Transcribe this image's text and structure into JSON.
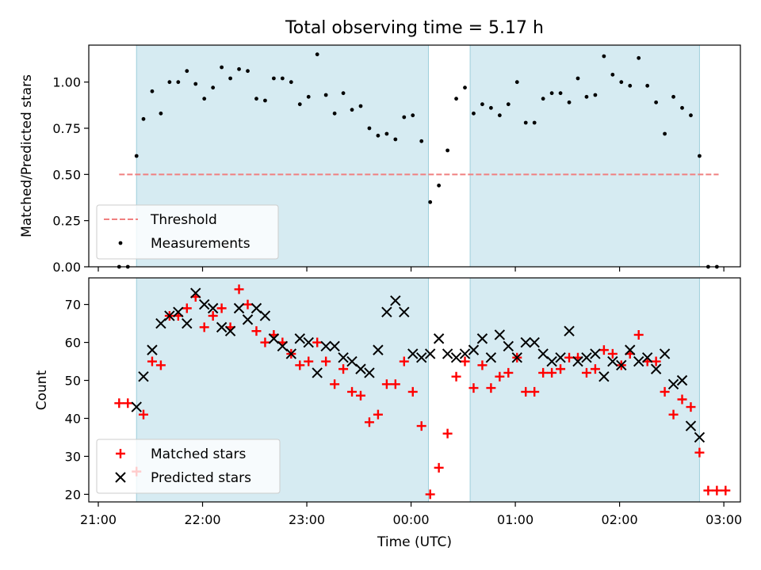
{
  "title": "Total observing time = 5.17 h",
  "chart_data": [
    {
      "type": "scatter",
      "ylabel": "Matched/Predicted stars",
      "xlim": [
        "21:00",
        "03:00"
      ],
      "ylim": [
        0,
        1.2
      ],
      "yticks": [
        "0.00",
        "0.25",
        "0.50",
        "0.75",
        "1.00"
      ],
      "shaded_intervals": [
        [
          "21:22",
          "00:10"
        ],
        [
          "00:34",
          "02:46"
        ]
      ],
      "legend_position": "lower-left",
      "threshold": {
        "name": "Threshold",
        "value": 0.5,
        "x_range": [
          "21:12",
          "02:57"
        ],
        "color": "#f08080"
      },
      "series": [
        {
          "name": "Measurements",
          "color": "#000000",
          "points": [
            [
              "21:12",
              0.0
            ],
            [
              "21:17",
              0.0
            ],
            [
              "21:22",
              0.6
            ],
            [
              "21:26",
              0.8
            ],
            [
              "21:31",
              0.95
            ],
            [
              "21:36",
              0.83
            ],
            [
              "21:41",
              1.0
            ],
            [
              "21:46",
              1.0
            ],
            [
              "21:51",
              1.06
            ],
            [
              "21:56",
              0.99
            ],
            [
              "22:01",
              0.91
            ],
            [
              "22:06",
              0.97
            ],
            [
              "22:11",
              1.08
            ],
            [
              "22:16",
              1.02
            ],
            [
              "22:21",
              1.07
            ],
            [
              "22:26",
              1.06
            ],
            [
              "22:31",
              0.91
            ],
            [
              "22:36",
              0.9
            ],
            [
              "22:41",
              1.02
            ],
            [
              "22:46",
              1.02
            ],
            [
              "22:51",
              1.0
            ],
            [
              "22:56",
              0.88
            ],
            [
              "23:01",
              0.92
            ],
            [
              "23:06",
              1.15
            ],
            [
              "23:11",
              0.93
            ],
            [
              "23:16",
              0.83
            ],
            [
              "23:21",
              0.94
            ],
            [
              "23:26",
              0.85
            ],
            [
              "23:31",
              0.87
            ],
            [
              "23:36",
              0.75
            ],
            [
              "23:41",
              0.71
            ],
            [
              "23:46",
              0.72
            ],
            [
              "23:51",
              0.69
            ],
            [
              "23:56",
              0.81
            ],
            [
              "00:01",
              0.82
            ],
            [
              "00:06",
              0.68
            ],
            [
              "00:11",
              0.35
            ],
            [
              "00:16",
              0.44
            ],
            [
              "00:21",
              0.63
            ],
            [
              "00:26",
              0.91
            ],
            [
              "00:31",
              0.97
            ],
            [
              "00:36",
              0.83
            ],
            [
              "00:41",
              0.88
            ],
            [
              "00:46",
              0.86
            ],
            [
              "00:51",
              0.82
            ],
            [
              "00:56",
              0.88
            ],
            [
              "01:01",
              1.0
            ],
            [
              "01:06",
              0.78
            ],
            [
              "01:11",
              0.78
            ],
            [
              "01:16",
              0.91
            ],
            [
              "01:21",
              0.94
            ],
            [
              "01:26",
              0.94
            ],
            [
              "01:31",
              0.89
            ],
            [
              "01:36",
              1.02
            ],
            [
              "01:41",
              0.92
            ],
            [
              "01:46",
              0.93
            ],
            [
              "01:51",
              1.14
            ],
            [
              "01:56",
              1.04
            ],
            [
              "02:01",
              1.0
            ],
            [
              "02:06",
              0.98
            ],
            [
              "02:11",
              1.13
            ],
            [
              "02:16",
              0.98
            ],
            [
              "02:21",
              0.89
            ],
            [
              "02:26",
              0.72
            ],
            [
              "02:31",
              0.92
            ],
            [
              "02:36",
              0.86
            ],
            [
              "02:41",
              0.82
            ],
            [
              "02:46",
              0.6
            ],
            [
              "02:51",
              0.0
            ],
            [
              "02:56",
              0.0
            ]
          ]
        }
      ]
    },
    {
      "type": "scatter",
      "xlabel": "Time (UTC)",
      "ylabel": "Count",
      "xlim": [
        "21:00",
        "03:00"
      ],
      "xticks": [
        "21:00",
        "22:00",
        "23:00",
        "00:00",
        "01:00",
        "02:00",
        "03:00"
      ],
      "ylim": [
        18,
        77
      ],
      "yticks": [
        "20",
        "30",
        "40",
        "50",
        "60",
        "70"
      ],
      "shaded_intervals": [
        [
          "21:22",
          "00:10"
        ],
        [
          "00:34",
          "02:46"
        ]
      ],
      "legend_position": "lower-left",
      "series": [
        {
          "name": "Matched stars",
          "marker": "plus",
          "color": "#ff0000",
          "points": [
            [
              "21:12",
              44
            ],
            [
              "21:17",
              44
            ],
            [
              "21:22",
              26
            ],
            [
              "21:26",
              41
            ],
            [
              "21:31",
              55
            ],
            [
              "21:36",
              54
            ],
            [
              "21:41",
              67
            ],
            [
              "21:46",
              67
            ],
            [
              "21:51",
              69
            ],
            [
              "21:56",
              72
            ],
            [
              "22:01",
              64
            ],
            [
              "22:06",
              67
            ],
            [
              "22:11",
              69
            ],
            [
              "22:16",
              64
            ],
            [
              "22:21",
              74
            ],
            [
              "22:26",
              70
            ],
            [
              "22:31",
              63
            ],
            [
              "22:36",
              60
            ],
            [
              "22:41",
              62
            ],
            [
              "22:46",
              60
            ],
            [
              "22:51",
              57
            ],
            [
              "22:56",
              54
            ],
            [
              "23:01",
              55
            ],
            [
              "23:06",
              60
            ],
            [
              "23:11",
              55
            ],
            [
              "23:16",
              49
            ],
            [
              "23:21",
              53
            ],
            [
              "23:26",
              47
            ],
            [
              "23:31",
              46
            ],
            [
              "23:36",
              39
            ],
            [
              "23:41",
              41
            ],
            [
              "23:46",
              49
            ],
            [
              "23:51",
              49
            ],
            [
              "23:56",
              55
            ],
            [
              "00:01",
              47
            ],
            [
              "00:06",
              38
            ],
            [
              "00:11",
              20
            ],
            [
              "00:16",
              27
            ],
            [
              "00:21",
              36
            ],
            [
              "00:26",
              51
            ],
            [
              "00:31",
              55
            ],
            [
              "00:36",
              48
            ],
            [
              "00:41",
              54
            ],
            [
              "00:46",
              48
            ],
            [
              "00:51",
              51
            ],
            [
              "00:56",
              52
            ],
            [
              "01:01",
              56
            ],
            [
              "01:06",
              47
            ],
            [
              "01:11",
              47
            ],
            [
              "01:16",
              52
            ],
            [
              "01:21",
              52
            ],
            [
              "01:26",
              53
            ],
            [
              "01:31",
              56
            ],
            [
              "01:36",
              56
            ],
            [
              "01:41",
              52
            ],
            [
              "01:46",
              53
            ],
            [
              "01:51",
              58
            ],
            [
              "01:56",
              57
            ],
            [
              "02:01",
              54
            ],
            [
              "02:06",
              57
            ],
            [
              "02:11",
              62
            ],
            [
              "02:16",
              55
            ],
            [
              "02:21",
              55
            ],
            [
              "02:26",
              47
            ],
            [
              "02:31",
              41
            ],
            [
              "02:36",
              45
            ],
            [
              "02:41",
              43
            ],
            [
              "02:46",
              31
            ],
            [
              "02:51",
              21
            ],
            [
              "02:56",
              21
            ],
            [
              "03:01",
              21
            ]
          ]
        },
        {
          "name": "Predicted stars",
          "marker": "x",
          "color": "#000000",
          "points": [
            [
              "21:22",
              43
            ],
            [
              "21:26",
              51
            ],
            [
              "21:31",
              58
            ],
            [
              "21:36",
              65
            ],
            [
              "21:41",
              67
            ],
            [
              "21:46",
              68
            ],
            [
              "21:51",
              65
            ],
            [
              "21:56",
              73
            ],
            [
              "22:01",
              70
            ],
            [
              "22:06",
              69
            ],
            [
              "22:11",
              64
            ],
            [
              "22:16",
              63
            ],
            [
              "22:21",
              69
            ],
            [
              "22:26",
              66
            ],
            [
              "22:31",
              69
            ],
            [
              "22:36",
              67
            ],
            [
              "22:41",
              61
            ],
            [
              "22:46",
              59
            ],
            [
              "22:51",
              57
            ],
            [
              "22:56",
              61
            ],
            [
              "23:01",
              60
            ],
            [
              "23:06",
              52
            ],
            [
              "23:11",
              59
            ],
            [
              "23:16",
              59
            ],
            [
              "23:21",
              56
            ],
            [
              "23:26",
              55
            ],
            [
              "23:31",
              53
            ],
            [
              "23:36",
              52
            ],
            [
              "23:41",
              58
            ],
            [
              "23:46",
              68
            ],
            [
              "23:51",
              71
            ],
            [
              "23:56",
              68
            ],
            [
              "00:01",
              57
            ],
            [
              "00:06",
              56
            ],
            [
              "00:11",
              57
            ],
            [
              "00:16",
              61
            ],
            [
              "00:21",
              57
            ],
            [
              "00:26",
              56
            ],
            [
              "00:31",
              57
            ],
            [
              "00:36",
              58
            ],
            [
              "00:41",
              61
            ],
            [
              "00:46",
              56
            ],
            [
              "00:51",
              62
            ],
            [
              "00:56",
              59
            ],
            [
              "01:01",
              56
            ],
            [
              "01:06",
              60
            ],
            [
              "01:11",
              60
            ],
            [
              "01:16",
              57
            ],
            [
              "01:21",
              55
            ],
            [
              "01:26",
              56
            ],
            [
              "01:31",
              63
            ],
            [
              "01:36",
              55
            ],
            [
              "01:41",
              56
            ],
            [
              "01:46",
              57
            ],
            [
              "01:51",
              51
            ],
            [
              "01:56",
              55
            ],
            [
              "02:01",
              54
            ],
            [
              "02:06",
              58
            ],
            [
              "02:11",
              55
            ],
            [
              "02:16",
              56
            ],
            [
              "02:21",
              53
            ],
            [
              "02:26",
              57
            ],
            [
              "02:31",
              49
            ],
            [
              "02:36",
              50
            ],
            [
              "02:41",
              38
            ],
            [
              "02:46",
              35
            ]
          ]
        }
      ]
    }
  ]
}
